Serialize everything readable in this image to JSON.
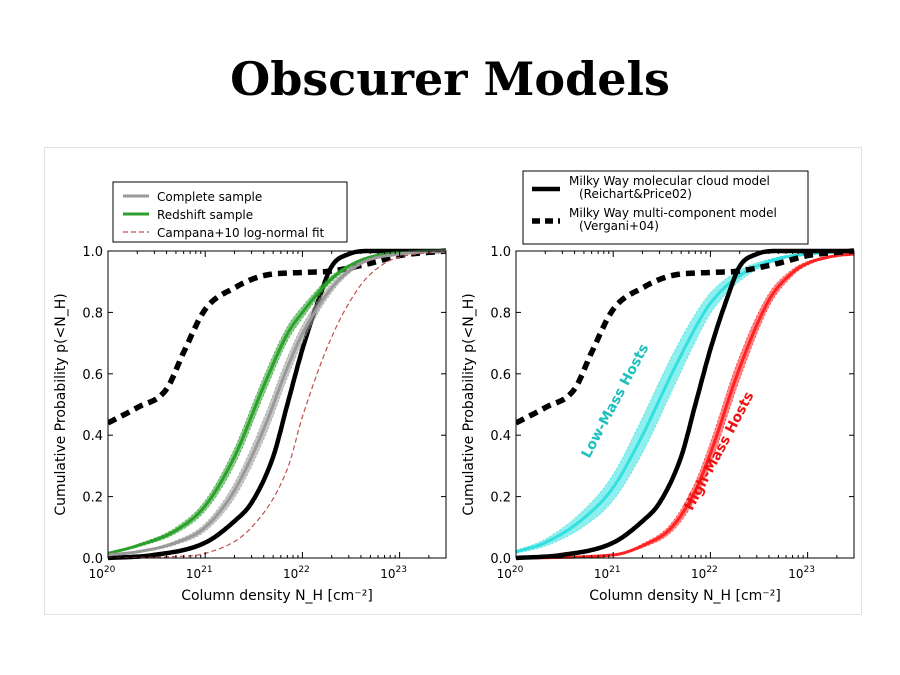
{
  "slide": {
    "title": "Obscurer Models"
  },
  "chart_data": [
    {
      "type": "line",
      "x_scale": "log",
      "xlim": [
        1e+20,
        3e+23
      ],
      "ylim": [
        0.0,
        1.0
      ],
      "xlabel": "Column density N_H [cm⁻²]",
      "ylabel": "Cumulative Probability p(<N_H)",
      "xticks": [
        {
          "value": 1e+20,
          "base": "10",
          "exp": "20"
        },
        {
          "value": 1e+21,
          "base": "10",
          "exp": "21"
        },
        {
          "value": 1e+22,
          "base": "10",
          "exp": "22"
        },
        {
          "value": 1e+23,
          "base": "10",
          "exp": "23"
        }
      ],
      "yticks": [
        "0.0",
        "0.2",
        "0.4",
        "0.6",
        "0.8",
        "1.0"
      ],
      "legend_position": "top",
      "legend": [
        {
          "label": "Complete sample",
          "style": "grey-line"
        },
        {
          "label": "Redshift sample",
          "style": "green-line"
        },
        {
          "label": "Campana+10 log-normal fit",
          "style": "red-dashed"
        }
      ],
      "series": [
        {
          "name": "Milky Way molecular cloud model",
          "color": "#000000",
          "style": "solid",
          "x": [
            1e+20,
            3e+20,
            1e+21,
            2e+21,
            3e+21,
            5e+21,
            7e+21,
            1e+22,
            1.5e+22,
            2e+22,
            3e+22,
            5e+22,
            1e+23,
            3e+23
          ],
          "y": [
            0.0,
            0.01,
            0.05,
            0.12,
            0.18,
            0.33,
            0.5,
            0.68,
            0.85,
            0.95,
            0.99,
            1.0,
            1.0,
            1.0
          ]
        },
        {
          "name": "Milky Way multi-component model",
          "color": "#000000",
          "style": "dotted",
          "x": [
            1e+20,
            2e+20,
            4e+20,
            6e+20,
            1e+21,
            2e+21,
            4e+21,
            1e+22,
            2e+22,
            5e+22,
            1e+23,
            3e+23
          ],
          "y": [
            0.44,
            0.49,
            0.55,
            0.67,
            0.81,
            0.88,
            0.92,
            0.93,
            0.935,
            0.96,
            0.985,
            1.0
          ]
        },
        {
          "name": "Redshift sample",
          "color": "#2ca02c",
          "style": "band",
          "x": [
            1e+20,
            2e+20,
            5e+20,
            1e+21,
            2e+21,
            4e+21,
            7e+21,
            1e+22,
            2e+22,
            4e+22,
            1e+23,
            3e+23
          ],
          "y": [
            0.015,
            0.04,
            0.09,
            0.17,
            0.33,
            0.56,
            0.73,
            0.8,
            0.91,
            0.97,
            0.995,
            1.0
          ],
          "width": 0.03
        },
        {
          "name": "Complete sample",
          "color": "#999999",
          "style": "band",
          "x": [
            1e+20,
            2e+20,
            5e+20,
            1e+21,
            2e+21,
            4e+21,
            7e+21,
            1e+22,
            2e+22,
            4e+22,
            1e+23,
            3e+23
          ],
          "y": [
            0.01,
            0.02,
            0.05,
            0.1,
            0.22,
            0.42,
            0.62,
            0.73,
            0.88,
            0.96,
            0.99,
            1.0
          ],
          "width": 0.035
        },
        {
          "name": "Campana+10 log-normal fit",
          "color": "#c0504d",
          "style": "dashed",
          "x": [
            1e+20,
            5e+20,
            1e+21,
            3e+21,
            7e+21,
            1e+22,
            2e+22,
            4e+22,
            7e+22,
            1e+23,
            2e+23,
            3e+23
          ],
          "y": [
            0.0,
            0.005,
            0.015,
            0.1,
            0.29,
            0.46,
            0.72,
            0.89,
            0.96,
            0.98,
            0.995,
            1.0
          ]
        }
      ]
    },
    {
      "type": "line",
      "x_scale": "log",
      "xlim": [
        1e+20,
        3e+23
      ],
      "ylim": [
        0.0,
        1.0
      ],
      "xlabel": "Column density N_H [cm⁻²]",
      "ylabel": "Cumulative Probability p(<N_H)",
      "xticks": [
        {
          "value": 1e+20,
          "base": "10",
          "exp": "20"
        },
        {
          "value": 1e+21,
          "base": "10",
          "exp": "21"
        },
        {
          "value": 1e+22,
          "base": "10",
          "exp": "22"
        },
        {
          "value": 1e+23,
          "base": "10",
          "exp": "23"
        }
      ],
      "yticks": [
        "0.0",
        "0.2",
        "0.4",
        "0.6",
        "0.8",
        "1.0"
      ],
      "legend_position": "top",
      "legend": [
        {
          "label": "Milky Way molecular cloud model",
          "sub": "(Reichart&Price02)",
          "style": "black-solid"
        },
        {
          "label": "Milky Way multi-component model",
          "sub": "(Vergani+04)",
          "style": "black-dotted"
        }
      ],
      "annotations": [
        {
          "text": "Low-Mass Hosts",
          "color": "#1fbfbf",
          "rotation": -62
        },
        {
          "text": "High-Mass Hosts",
          "color": "#ee1111",
          "rotation": -62
        }
      ],
      "series": [
        {
          "name": "Low-Mass Hosts",
          "color": "#33e0e0",
          "style": "band",
          "x": [
            1e+20,
            2e+20,
            5e+20,
            1e+21,
            2e+21,
            4e+21,
            7e+21,
            1e+22,
            2e+22,
            5e+22,
            1e+23,
            3e+23
          ],
          "y": [
            0.02,
            0.05,
            0.13,
            0.23,
            0.4,
            0.6,
            0.75,
            0.83,
            0.92,
            0.975,
            0.99,
            1.0
          ],
          "width": 0.06
        },
        {
          "name": "High-Mass Hosts",
          "color": "#ff2222",
          "style": "band",
          "x": [
            1e+20,
            1e+21,
            2e+21,
            4e+21,
            7e+21,
            1e+22,
            2e+22,
            4e+22,
            7e+22,
            1e+23,
            2e+23,
            3e+23
          ],
          "y": [
            0.0,
            0.01,
            0.04,
            0.1,
            0.22,
            0.34,
            0.62,
            0.84,
            0.93,
            0.96,
            0.985,
            0.99
          ],
          "width": 0.04
        },
        {
          "name": "Milky Way molecular cloud model",
          "color": "#000000",
          "style": "solid",
          "x": [
            1e+20,
            3e+20,
            1e+21,
            2e+21,
            3e+21,
            5e+21,
            7e+21,
            1e+22,
            1.5e+22,
            2e+22,
            3e+22,
            5e+22,
            1e+23,
            3e+23
          ],
          "y": [
            0.0,
            0.01,
            0.05,
            0.12,
            0.18,
            0.33,
            0.5,
            0.68,
            0.85,
            0.95,
            0.99,
            1.0,
            1.0,
            1.0
          ]
        },
        {
          "name": "Milky Way multi-component model",
          "color": "#000000",
          "style": "dotted",
          "x": [
            1e+20,
            2e+20,
            4e+20,
            6e+20,
            1e+21,
            2e+21,
            4e+21,
            1e+22,
            2e+22,
            5e+22,
            1e+23,
            3e+23
          ],
          "y": [
            0.44,
            0.49,
            0.55,
            0.67,
            0.81,
            0.88,
            0.92,
            0.93,
            0.935,
            0.96,
            0.985,
            1.0
          ]
        }
      ]
    }
  ]
}
